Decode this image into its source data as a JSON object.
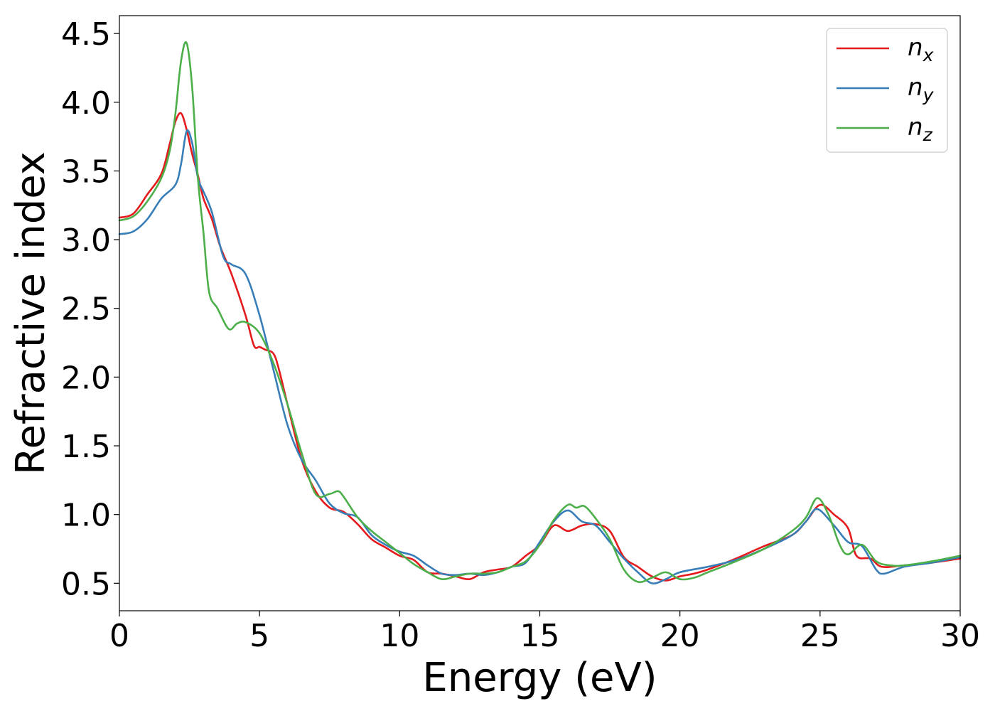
{
  "chart_data": {
    "type": "line",
    "xlabel": "Energy (eV)",
    "ylabel": "Refractive index",
    "xlim": [
      0,
      30
    ],
    "ylim": [
      0.3,
      4.63
    ],
    "xticks": [
      0,
      5,
      10,
      15,
      20,
      25,
      30
    ],
    "xtick_labels": [
      "0",
      "5",
      "10",
      "15",
      "20",
      "25",
      "30"
    ],
    "yticks": [
      0.5,
      1.0,
      1.5,
      2.0,
      2.5,
      3.0,
      3.5,
      4.0,
      4.5
    ],
    "ytick_labels": [
      "0.5",
      "1.0",
      "1.5",
      "2.0",
      "2.5",
      "3.0",
      "3.5",
      "4.0",
      "4.5"
    ],
    "grid": false,
    "legend_position": "top-right",
    "series": [
      {
        "name": "n_x",
        "label_base": "n",
        "label_sub": "x",
        "color": "#e41a1c",
        "points": [
          [
            0,
            3.16
          ],
          [
            0.5,
            3.19
          ],
          [
            1.0,
            3.33
          ],
          [
            1.5,
            3.48
          ],
          [
            1.8,
            3.7
          ],
          [
            2.0,
            3.86
          ],
          [
            2.2,
            3.92
          ],
          [
            2.4,
            3.8
          ],
          [
            2.6,
            3.62
          ],
          [
            2.8,
            3.47
          ],
          [
            3.0,
            3.3
          ],
          [
            3.3,
            3.15
          ],
          [
            3.6,
            2.95
          ],
          [
            4.0,
            2.75
          ],
          [
            4.5,
            2.45
          ],
          [
            4.8,
            2.23
          ],
          [
            5.0,
            2.22
          ],
          [
            5.2,
            2.2
          ],
          [
            5.5,
            2.17
          ],
          [
            5.7,
            2.05
          ],
          [
            6.0,
            1.8
          ],
          [
            6.5,
            1.4
          ],
          [
            7.0,
            1.17
          ],
          [
            7.5,
            1.05
          ],
          [
            8.0,
            1.02
          ],
          [
            8.5,
            0.93
          ],
          [
            9.0,
            0.82
          ],
          [
            9.5,
            0.76
          ],
          [
            10.0,
            0.7
          ],
          [
            10.5,
            0.67
          ],
          [
            11.0,
            0.58
          ],
          [
            11.5,
            0.57
          ],
          [
            12.0,
            0.55
          ],
          [
            12.5,
            0.53
          ],
          [
            13.0,
            0.58
          ],
          [
            13.5,
            0.6
          ],
          [
            14.0,
            0.62
          ],
          [
            14.5,
            0.7
          ],
          [
            15.0,
            0.78
          ],
          [
            15.5,
            0.92
          ],
          [
            16.0,
            0.88
          ],
          [
            16.5,
            0.92
          ],
          [
            17.0,
            0.93
          ],
          [
            17.5,
            0.88
          ],
          [
            18.0,
            0.69
          ],
          [
            18.5,
            0.62
          ],
          [
            19.0,
            0.55
          ],
          [
            19.5,
            0.52
          ],
          [
            20.0,
            0.55
          ],
          [
            20.5,
            0.57
          ],
          [
            21.0,
            0.6
          ],
          [
            22.0,
            0.68
          ],
          [
            23.0,
            0.77
          ],
          [
            24.0,
            0.85
          ],
          [
            24.5,
            0.95
          ],
          [
            25.0,
            1.07
          ],
          [
            25.5,
            1.0
          ],
          [
            26.0,
            0.9
          ],
          [
            26.3,
            0.7
          ],
          [
            26.8,
            0.68
          ],
          [
            27.2,
            0.62
          ],
          [
            28.0,
            0.63
          ],
          [
            29.0,
            0.65
          ],
          [
            30.0,
            0.68
          ]
        ]
      },
      {
        "name": "n_y",
        "label_base": "n",
        "label_sub": "y",
        "color": "#377eb8",
        "points": [
          [
            0,
            3.04
          ],
          [
            0.5,
            3.06
          ],
          [
            1.0,
            3.15
          ],
          [
            1.5,
            3.3
          ],
          [
            2.0,
            3.4
          ],
          [
            2.2,
            3.55
          ],
          [
            2.4,
            3.79
          ],
          [
            2.6,
            3.7
          ],
          [
            2.8,
            3.45
          ],
          [
            3.0,
            3.35
          ],
          [
            3.3,
            3.2
          ],
          [
            3.7,
            2.88
          ],
          [
            4.0,
            2.82
          ],
          [
            4.5,
            2.75
          ],
          [
            5.0,
            2.45
          ],
          [
            5.5,
            2.05
          ],
          [
            6.0,
            1.65
          ],
          [
            6.5,
            1.4
          ],
          [
            7.0,
            1.25
          ],
          [
            7.5,
            1.08
          ],
          [
            8.0,
            1.01
          ],
          [
            8.5,
            0.98
          ],
          [
            9.0,
            0.85
          ],
          [
            9.5,
            0.78
          ],
          [
            10.0,
            0.73
          ],
          [
            10.5,
            0.7
          ],
          [
            11.0,
            0.63
          ],
          [
            11.5,
            0.57
          ],
          [
            12.0,
            0.56
          ],
          [
            12.5,
            0.57
          ],
          [
            13.0,
            0.56
          ],
          [
            13.5,
            0.58
          ],
          [
            14.0,
            0.62
          ],
          [
            14.5,
            0.65
          ],
          [
            15.0,
            0.8
          ],
          [
            15.5,
            0.95
          ],
          [
            16.0,
            1.03
          ],
          [
            16.5,
            0.95
          ],
          [
            17.0,
            0.92
          ],
          [
            17.5,
            0.8
          ],
          [
            18.0,
            0.68
          ],
          [
            18.5,
            0.58
          ],
          [
            19.0,
            0.5
          ],
          [
            19.5,
            0.53
          ],
          [
            20.0,
            0.58
          ],
          [
            21.0,
            0.62
          ],
          [
            22.0,
            0.67
          ],
          [
            23.0,
            0.75
          ],
          [
            24.0,
            0.85
          ],
          [
            24.5,
            0.95
          ],
          [
            24.9,
            1.04
          ],
          [
            25.5,
            0.92
          ],
          [
            26.0,
            0.8
          ],
          [
            26.5,
            0.77
          ],
          [
            27.0,
            0.6
          ],
          [
            27.3,
            0.57
          ],
          [
            28.0,
            0.62
          ],
          [
            29.0,
            0.65
          ],
          [
            30.0,
            0.69
          ]
        ]
      },
      {
        "name": "n_z",
        "label_base": "n",
        "label_sub": "z",
        "color": "#4daf4a",
        "points": [
          [
            0,
            3.14
          ],
          [
            0.5,
            3.17
          ],
          [
            1.0,
            3.28
          ],
          [
            1.5,
            3.45
          ],
          [
            1.8,
            3.65
          ],
          [
            2.0,
            3.92
          ],
          [
            2.2,
            4.3
          ],
          [
            2.4,
            4.43
          ],
          [
            2.6,
            4.1
          ],
          [
            2.8,
            3.45
          ],
          [
            3.0,
            3.05
          ],
          [
            3.2,
            2.62
          ],
          [
            3.5,
            2.5
          ],
          [
            3.9,
            2.35
          ],
          [
            4.2,
            2.39
          ],
          [
            4.5,
            2.4
          ],
          [
            5.0,
            2.32
          ],
          [
            5.5,
            2.1
          ],
          [
            6.0,
            1.8
          ],
          [
            6.5,
            1.45
          ],
          [
            7.0,
            1.15
          ],
          [
            7.5,
            1.15
          ],
          [
            7.8,
            1.17
          ],
          [
            8.0,
            1.13
          ],
          [
            8.5,
            0.98
          ],
          [
            9.0,
            0.88
          ],
          [
            9.5,
            0.8
          ],
          [
            10.0,
            0.72
          ],
          [
            10.5,
            0.64
          ],
          [
            11.0,
            0.58
          ],
          [
            11.5,
            0.53
          ],
          [
            12.0,
            0.55
          ],
          [
            12.5,
            0.57
          ],
          [
            13.0,
            0.57
          ],
          [
            13.5,
            0.58
          ],
          [
            14.0,
            0.62
          ],
          [
            14.5,
            0.66
          ],
          [
            15.0,
            0.78
          ],
          [
            15.5,
            0.96
          ],
          [
            16.0,
            1.07
          ],
          [
            16.3,
            1.05
          ],
          [
            16.6,
            1.06
          ],
          [
            17.0,
            0.97
          ],
          [
            17.5,
            0.82
          ],
          [
            18.0,
            0.6
          ],
          [
            18.5,
            0.51
          ],
          [
            19.0,
            0.54
          ],
          [
            19.5,
            0.58
          ],
          [
            20.0,
            0.53
          ],
          [
            20.5,
            0.54
          ],
          [
            21.0,
            0.58
          ],
          [
            22.0,
            0.66
          ],
          [
            23.0,
            0.75
          ],
          [
            24.0,
            0.88
          ],
          [
            24.5,
            0.98
          ],
          [
            24.9,
            1.12
          ],
          [
            25.3,
            1.0
          ],
          [
            25.7,
            0.78
          ],
          [
            26.0,
            0.71
          ],
          [
            26.5,
            0.78
          ],
          [
            27.0,
            0.66
          ],
          [
            27.5,
            0.63
          ],
          [
            28.0,
            0.63
          ],
          [
            29.0,
            0.66
          ],
          [
            30.0,
            0.7
          ]
        ]
      }
    ]
  }
}
